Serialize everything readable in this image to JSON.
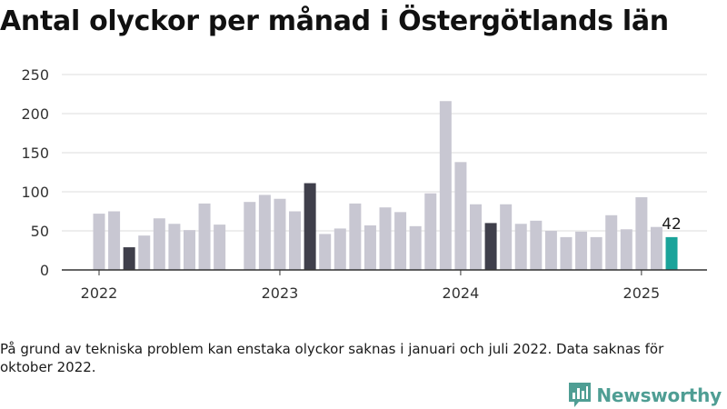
{
  "page": {
    "title": "Antal olyckor per månad i Östergötlands län",
    "note": "På grund av tekniska problem kan enstaka olyckor saknas i januari och juli 2022. Data saknas för oktober 2022.",
    "brand": "Newsworthy",
    "brand_icon": "bar-chart-logo-icon"
  },
  "colors": {
    "default_bar": "#c8c7d2",
    "highlight_bar": "#3f3f4b",
    "latest_bar": "#1aa39a",
    "grid": "#dddddd",
    "axis": "#333333",
    "brand": "#4f9e94"
  },
  "chart_data": {
    "type": "bar",
    "title": "Antal olyckor per månad i Östergötlands län",
    "xlabel": "",
    "ylabel": "",
    "ylim": [
      0,
      250
    ],
    "yticks": [
      0,
      50,
      100,
      150,
      200,
      250
    ],
    "xticks": [
      "2022",
      "2023",
      "2024",
      "2025"
    ],
    "grid": true,
    "categories": [
      "2022-01",
      "2022-02",
      "2022-03",
      "2022-04",
      "2022-05",
      "2022-06",
      "2022-07",
      "2022-08",
      "2022-09",
      "2022-10",
      "2022-11",
      "2022-12",
      "2023-01",
      "2023-02",
      "2023-03",
      "2023-04",
      "2023-05",
      "2023-06",
      "2023-07",
      "2023-08",
      "2023-09",
      "2023-10",
      "2023-11",
      "2023-12",
      "2024-01",
      "2024-02",
      "2024-03",
      "2024-04",
      "2024-05",
      "2024-06",
      "2024-07",
      "2024-08",
      "2024-09",
      "2024-10",
      "2024-11",
      "2024-12",
      "2025-01",
      "2025-02",
      "2025-03"
    ],
    "values": [
      72,
      75,
      29,
      44,
      66,
      59,
      51,
      85,
      58,
      null,
      87,
      96,
      91,
      75,
      111,
      46,
      53,
      85,
      57,
      80,
      74,
      56,
      98,
      216,
      138,
      84,
      60,
      84,
      59,
      63,
      50,
      42,
      49,
      42,
      70,
      52,
      93,
      55,
      42
    ],
    "highlight": [
      "2022-03",
      "2023-03",
      "2024-03"
    ],
    "latest": "2025-03",
    "annotations": [
      {
        "category": "2025-03",
        "text": "42"
      }
    ]
  }
}
